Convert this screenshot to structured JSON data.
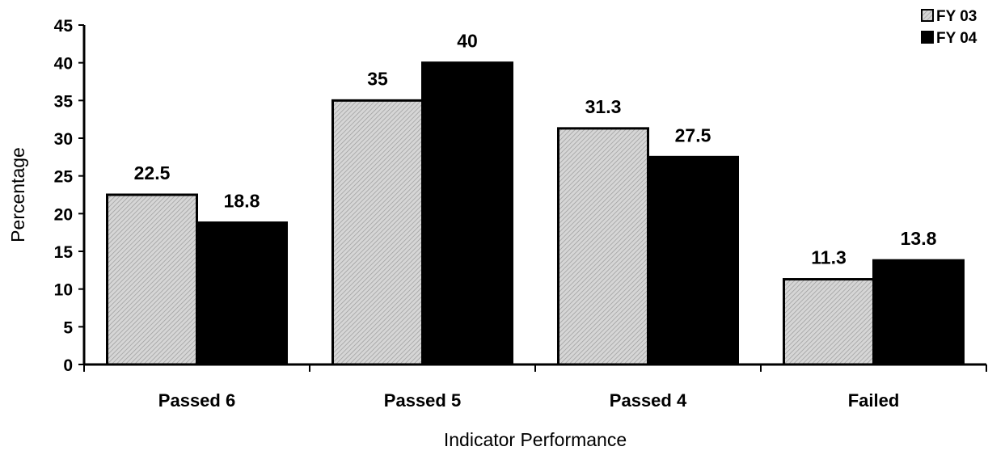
{
  "chart_data": {
    "type": "bar",
    "categories": [
      "Passed 6",
      "Passed 5",
      "Passed 4",
      "Failed"
    ],
    "series": [
      {
        "name": "FY 03",
        "values": [
          22.5,
          35,
          31.3,
          11.3
        ],
        "labels": [
          "22.5",
          "35",
          "31.3",
          "11.3"
        ],
        "color": "#c8c8c8",
        "pattern": "diagonal-hatch"
      },
      {
        "name": "FY 04",
        "values": [
          18.8,
          40,
          27.5,
          13.8
        ],
        "labels": [
          "18.8",
          "40",
          "27.5",
          "13.8"
        ],
        "color": "#000000",
        "pattern": "solid"
      }
    ],
    "xlabel": "Indicator Performance",
    "ylabel": "Percentage",
    "ylim": [
      0,
      45
    ],
    "yticks": [
      0,
      5,
      10,
      15,
      20,
      25,
      30,
      35,
      40,
      45
    ],
    "grid": false,
    "legend": "top-right"
  }
}
